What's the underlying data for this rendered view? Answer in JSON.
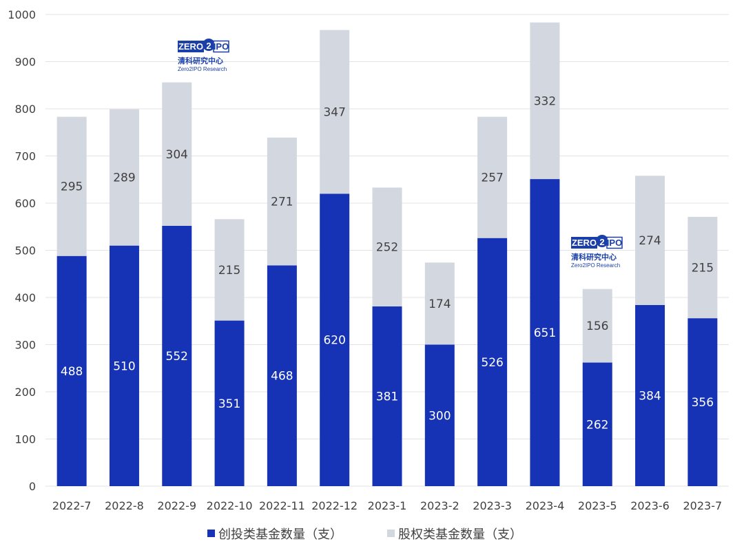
{
  "chart_data": {
    "type": "bar",
    "stacked": true,
    "categories": [
      "2022-7",
      "2022-8",
      "2022-9",
      "2022-10",
      "2022-11",
      "2022-12",
      "2023-1",
      "2023-2",
      "2023-3",
      "2023-4",
      "2023-5",
      "2023-6",
      "2023-7"
    ],
    "series": [
      {
        "name": "创投类基金数量（支）",
        "color": "#1733b5",
        "label_color": "#ffffff",
        "values": [
          488,
          510,
          552,
          351,
          468,
          620,
          381,
          300,
          526,
          651,
          262,
          384,
          356
        ]
      },
      {
        "name": "股权类基金数量（支）",
        "color": "#d3d7df",
        "label_color": "#404040",
        "values": [
          295,
          289,
          304,
          215,
          271,
          347,
          252,
          174,
          257,
          332,
          156,
          274,
          215
        ]
      }
    ],
    "ylim": [
      0,
      1000
    ],
    "yticks": [
      0,
      100,
      200,
      300,
      400,
      500,
      600,
      700,
      800,
      900,
      1000
    ],
    "grid": true,
    "legend_position": "bottom"
  },
  "watermark": {
    "logo_left": "ZERO",
    "logo_mid": "2",
    "logo_right": "IPO",
    "cn": "清科研究中心",
    "en": "Zero2IPO Research"
  }
}
